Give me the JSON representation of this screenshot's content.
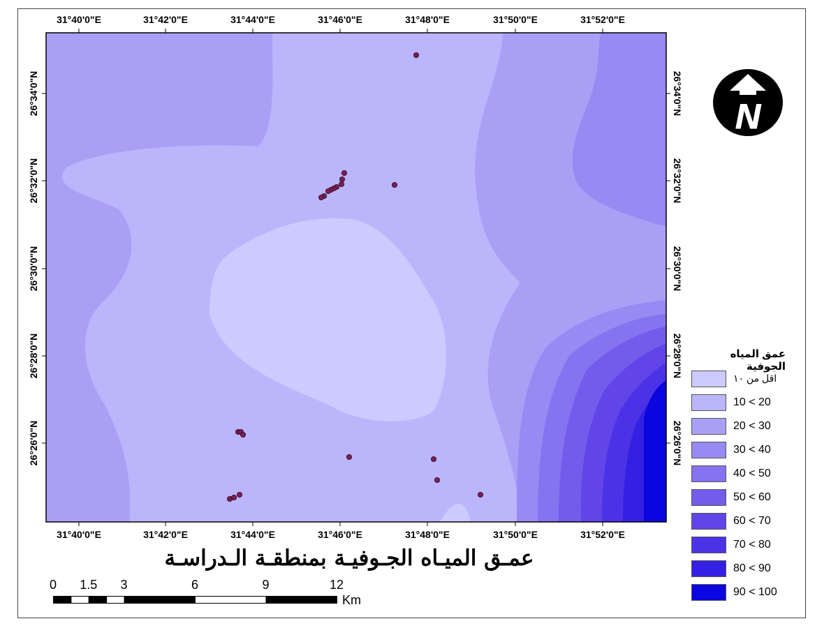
{
  "title": "عمـق الميـاه الجـوفيـة بمنطقـة الـدراسـة",
  "graticule": {
    "longitudes": [
      "31°40'0\"E",
      "31°42'0\"E",
      "31°44'0\"E",
      "31°46'0\"E",
      "31°48'0\"E",
      "31°50'0\"E",
      "31°52'0\"E"
    ],
    "latitudes": [
      "26°34'0\"N",
      "26°32'0\"N",
      "26°30'0\"N",
      "26°28'0\"N",
      "26°26'0\"N"
    ]
  },
  "legend": {
    "title": "عمق المياه الجوفية",
    "classes": [
      {
        "label": "اقل من ١٠",
        "color": "#cccafe"
      },
      {
        "label": "10 < 20",
        "color": "#bbb5fb"
      },
      {
        "label": "20 < 30",
        "color": "#a9a0f6"
      },
      {
        "label": "30 < 40",
        "color": "#978af3"
      },
      {
        "label": "40 < 50",
        "color": "#8573f0"
      },
      {
        "label": "50 < 60",
        "color": "#735cec"
      },
      {
        "label": "60 < 70",
        "color": "#6145e8"
      },
      {
        "label": "70 < 80",
        "color": "#4b32e6"
      },
      {
        "label": "80 < 90",
        "color": "#3420e3"
      },
      {
        "label": "90 < 100",
        "color": "#0b05df"
      }
    ]
  },
  "scale_bar": {
    "labels": [
      "0",
      "1.5",
      "3",
      "6",
      "9",
      "12"
    ],
    "values": [
      0,
      1.5,
      3,
      6,
      9,
      12
    ],
    "unit": "Km"
  },
  "north_arrow": {
    "letter": "N"
  },
  "well_marker_color": "#7a1f55"
}
